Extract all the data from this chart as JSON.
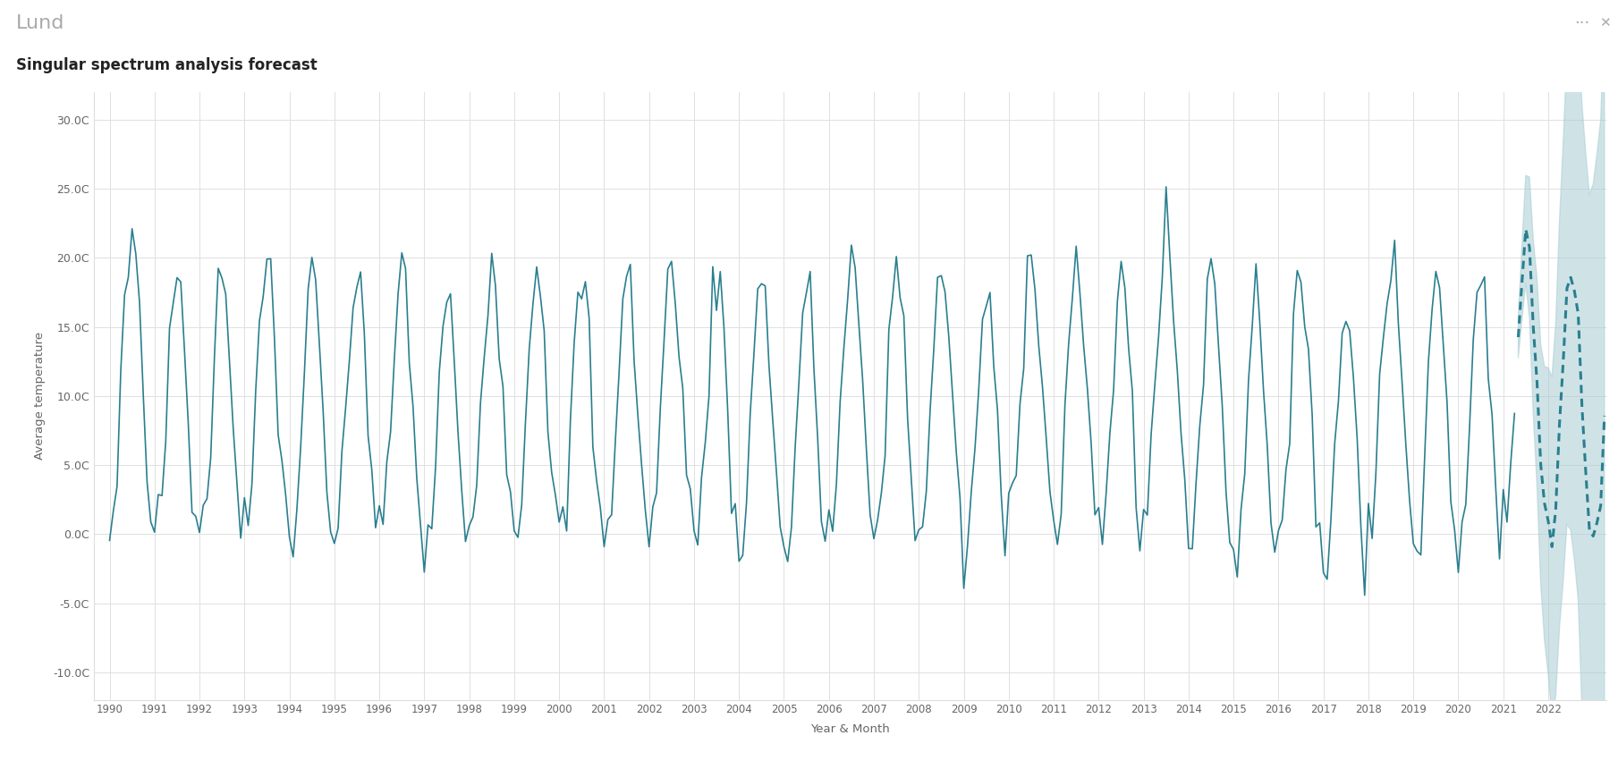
{
  "title_main": "Lund",
  "title_sub": "Singular spectrum analysis forecast",
  "xlabel": "Year & Month",
  "ylabel": "Average temperature",
  "ylim": [
    -12,
    32
  ],
  "yticks": [
    -10.0,
    -5.0,
    0.0,
    5.0,
    10.0,
    15.0,
    20.0,
    25.0,
    30.0
  ],
  "ytick_labels": [
    "-10.0C",
    "-5.0C",
    "0.0C",
    "5.0C",
    "10.0C",
    "15.0C",
    "20.0C",
    "25.0C",
    "30.0C"
  ],
  "line_color": "#2a7f8f",
  "forecast_line_color": "#2a7f8f",
  "ci_color": "#a8cdd4",
  "bg_color": "#ffffff",
  "header_bg": "#eeeeee",
  "grid_color": "#e0e0e0",
  "font_color_main": "#aaaaaa",
  "font_color_sub": "#222222"
}
